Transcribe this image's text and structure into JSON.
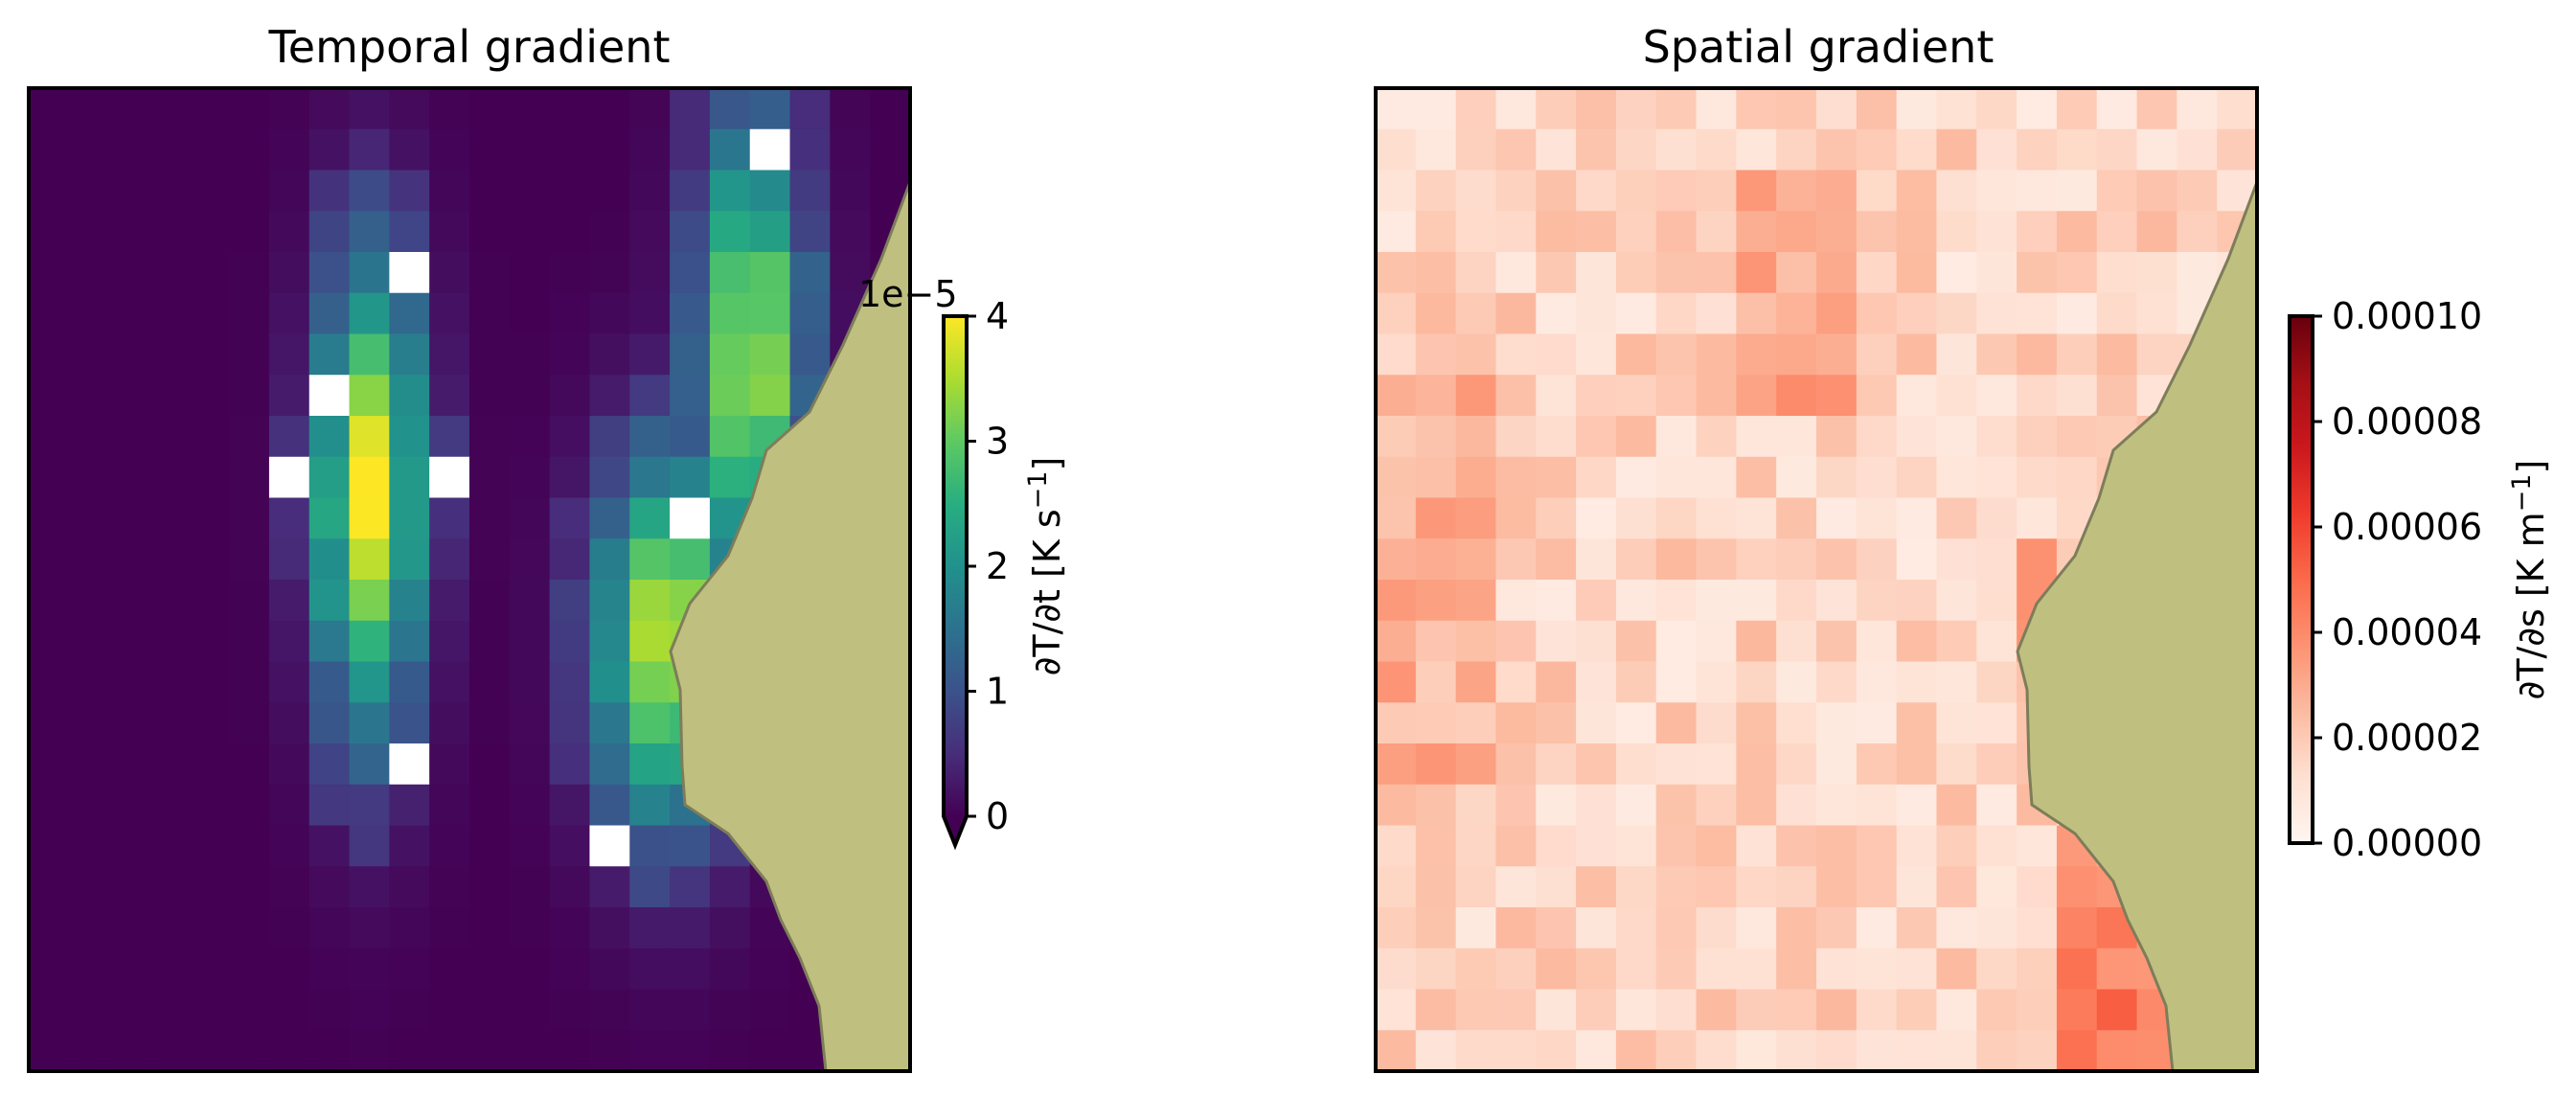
{
  "chart_data": [
    {
      "type": "heatmap",
      "title": "Temporal gradient",
      "colormap": "viridis",
      "colorbar": {
        "label": "∂T/∂t [K s⁻¹]",
        "label_parts": {
          "main": "∂T/∂t [K s",
          "sup": "−1",
          "end": "]"
        },
        "offset_text": "1e−5",
        "vmin": 0,
        "vmax": 4e-05,
        "ticks": [
          0,
          1,
          2,
          3,
          4
        ],
        "extend": "min"
      },
      "grid": {
        "cols": 22,
        "rows": 24
      },
      "land_color": "#bfbf80",
      "blob_centers": [
        [
          8,
          9.5,
          3.8,
          1.3,
          5.5
        ],
        [
          17.5,
          6,
          3.4,
          1.4,
          5.5
        ],
        [
          15.5,
          13,
          3.5,
          1.8,
          4.5
        ]
      ]
    },
    {
      "type": "heatmap",
      "title": "Spatial gradient",
      "colormap": "Reds",
      "colorbar": {
        "label": "∂T/∂s [K m⁻¹]",
        "label_parts": {
          "main": "∂T/∂s [K m",
          "sup": "−1",
          "end": "]"
        },
        "vmin": 0,
        "vmax": 0.0001,
        "ticks": [
          "0.00000",
          "0.00002",
          "0.00004",
          "0.00006",
          "0.00008",
          "0.00010"
        ]
      },
      "grid": {
        "cols": 22,
        "rows": 24
      },
      "land_color": "#bfbf80"
    }
  ]
}
